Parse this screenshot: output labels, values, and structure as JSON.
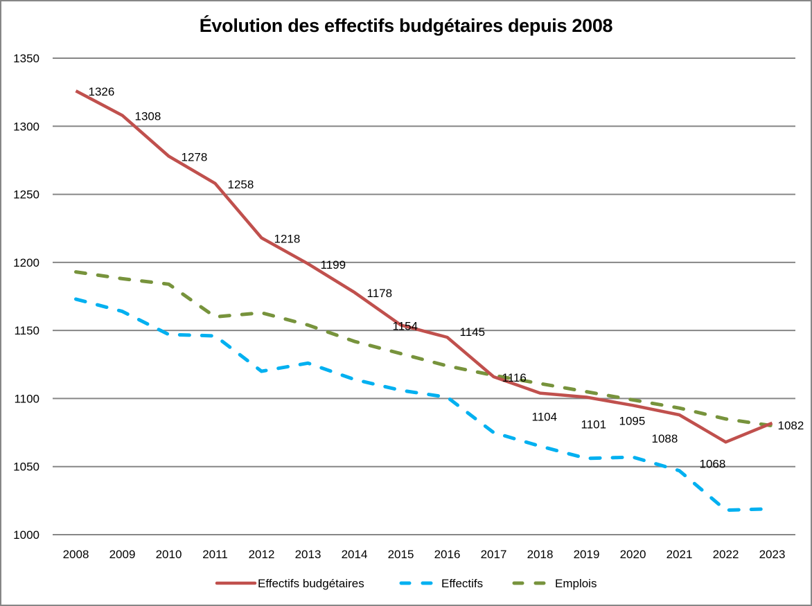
{
  "chart_data": {
    "type": "line",
    "title": "Évolution des effectifs budgétaires depuis 2008",
    "xlabel": "",
    "ylabel": "",
    "ylim": [
      1000,
      1350
    ],
    "yticks": [
      1000,
      1050,
      1100,
      1150,
      1200,
      1250,
      1300,
      1350
    ],
    "grid": true,
    "legend_position": "bottom",
    "categories": [
      "2008",
      "2009",
      "2010",
      "2011",
      "2012",
      "2013",
      "2014",
      "2015",
      "2016",
      "2017",
      "2018",
      "2019",
      "2020",
      "2021",
      "2022",
      "2023"
    ],
    "series": [
      {
        "name": "Effectifs budgétaires",
        "color": "#C0504D",
        "style": "solid",
        "values": [
          1326,
          1308,
          1278,
          1258,
          1218,
          1199,
          1178,
          1154,
          1145,
          1116,
          1104,
          1101,
          1095,
          1088,
          1068,
          1082
        ],
        "data_labels": [
          "1326",
          "1308",
          "1278",
          "1258",
          "1218",
          "1199",
          "1178",
          "1154",
          "1145",
          "1116",
          "1104",
          "1101",
          "1095",
          "1088",
          "1068",
          "1082"
        ]
      },
      {
        "name": "Effectifs",
        "color": "#00B0F0",
        "style": "dashed",
        "values": [
          1173,
          1164,
          1147,
          1146,
          1120,
          1126,
          1114,
          1106,
          1101,
          1075,
          1065,
          1056,
          1057,
          1047,
          1018,
          1019
        ]
      },
      {
        "name": "Emplois",
        "color": "#77933C",
        "style": "dashed",
        "values": [
          1193,
          1188,
          1184,
          1160,
          1163,
          1154,
          1142,
          1133,
          1124,
          1117,
          1111,
          1105,
          1099,
          1093,
          1085,
          1080
        ]
      }
    ]
  }
}
